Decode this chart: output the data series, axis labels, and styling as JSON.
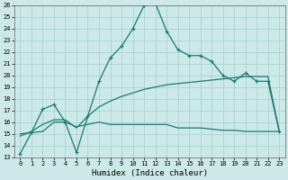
{
  "xlabel": "Humidex (Indice chaleur)",
  "bg_color": "#cce8e8",
  "line_color": "#1a7a6e",
  "grid_color": "#b0d8d8",
  "xlim": [
    -0.5,
    23.5
  ],
  "ylim": [
    13,
    26
  ],
  "xtick_labels": [
    "0",
    "1",
    "2",
    "3",
    "4",
    "5",
    "6",
    "7",
    "8",
    "9",
    "10",
    "11",
    "12",
    "13",
    "14",
    "15",
    "16",
    "17",
    "18",
    "19",
    "20",
    "21",
    "22",
    "23"
  ],
  "ytick_labels": [
    "13",
    "14",
    "15",
    "16",
    "17",
    "18",
    "19",
    "20",
    "21",
    "22",
    "23",
    "24",
    "25",
    "26"
  ],
  "xticks": [
    0,
    1,
    2,
    3,
    4,
    5,
    6,
    7,
    8,
    9,
    10,
    11,
    12,
    13,
    14,
    15,
    16,
    17,
    18,
    19,
    20,
    21,
    22,
    23
  ],
  "yticks": [
    13,
    14,
    15,
    16,
    17,
    18,
    19,
    20,
    21,
    22,
    23,
    24,
    25,
    26
  ],
  "line1_x": [
    0,
    1,
    2,
    3,
    4,
    5,
    6,
    7,
    8,
    9,
    10,
    11,
    12,
    13,
    14,
    15,
    16,
    17,
    18,
    19,
    20,
    21,
    22,
    23
  ],
  "line1_y": [
    13.3,
    15.1,
    17.1,
    17.5,
    16.0,
    13.4,
    16.5,
    19.5,
    21.5,
    22.5,
    24.0,
    26.0,
    26.2,
    23.8,
    22.2,
    21.7,
    21.7,
    21.2,
    20.0,
    19.5,
    20.2,
    19.5,
    19.5,
    15.2
  ],
  "line2_x": [
    0,
    1,
    2,
    3,
    4,
    5,
    6,
    7,
    8,
    9,
    10,
    11,
    12,
    13,
    14,
    15,
    16,
    17,
    18,
    19,
    20,
    21,
    22,
    23
  ],
  "line2_y": [
    14.8,
    15.2,
    15.8,
    16.2,
    16.2,
    15.5,
    16.5,
    17.3,
    17.8,
    18.2,
    18.5,
    18.8,
    19.0,
    19.2,
    19.3,
    19.4,
    19.5,
    19.6,
    19.7,
    19.8,
    19.9,
    19.9,
    19.9,
    15.2
  ],
  "line3_x": [
    0,
    1,
    2,
    3,
    4,
    5,
    6,
    7,
    8,
    9,
    10,
    11,
    12,
    13,
    14,
    15,
    16,
    17,
    18,
    19,
    20,
    21,
    22,
    23
  ],
  "line3_y": [
    15.0,
    15.1,
    15.2,
    16.0,
    16.0,
    15.6,
    15.8,
    16.0,
    15.8,
    15.8,
    15.8,
    15.8,
    15.8,
    15.8,
    15.5,
    15.5,
    15.5,
    15.4,
    15.3,
    15.3,
    15.2,
    15.2,
    15.2,
    15.2
  ]
}
